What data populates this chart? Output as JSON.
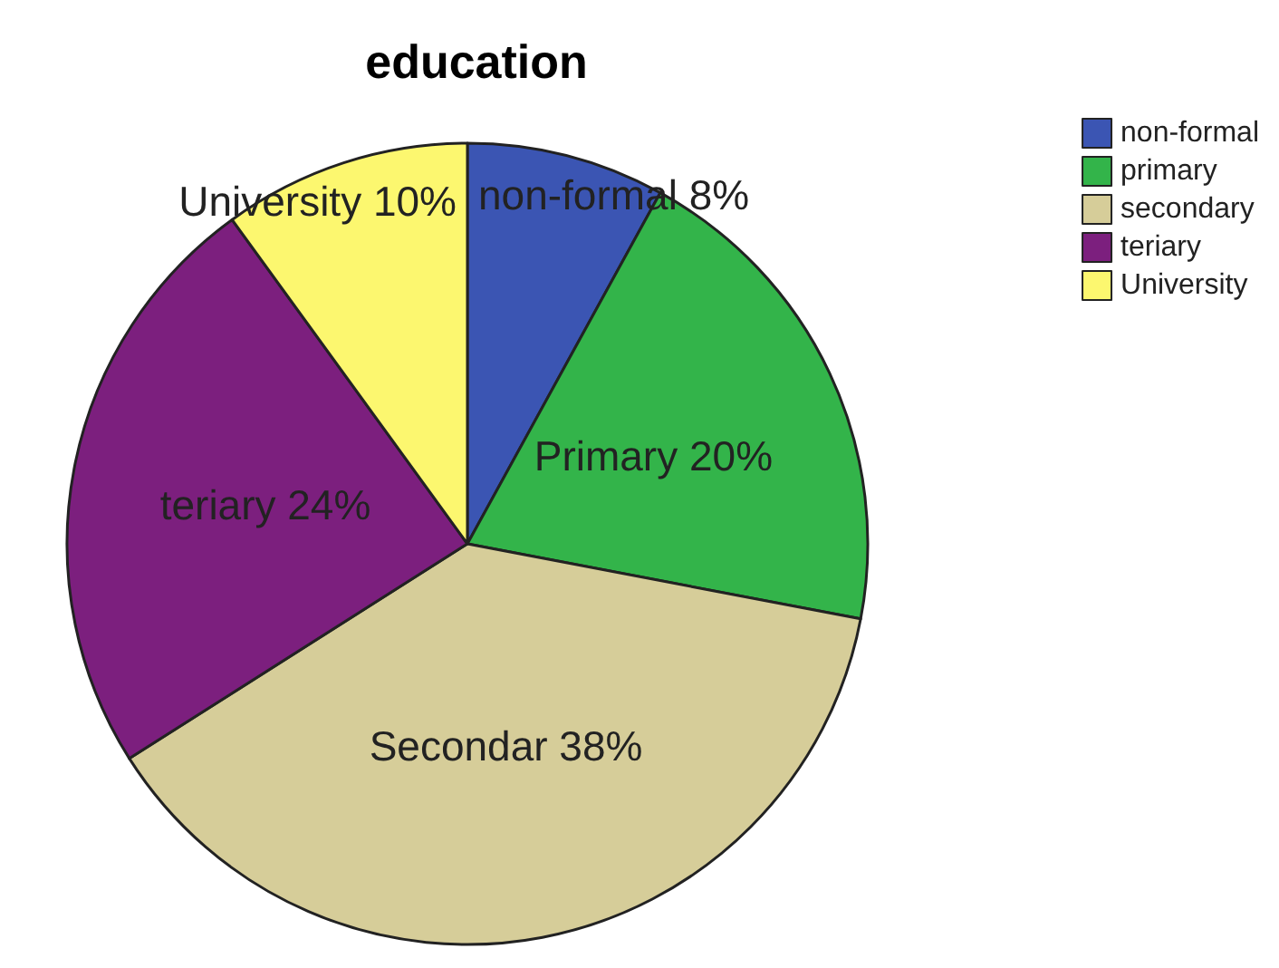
{
  "chart_data": {
    "type": "pie",
    "title": "education",
    "categories": [
      "non-formal",
      "primary",
      "secondary",
      "teriary",
      "University"
    ],
    "values": [
      8,
      20,
      38,
      24,
      10
    ],
    "colors": [
      "#3b55b3",
      "#33b44a",
      "#d6cd99",
      "#7c1f7e",
      "#fcf76f"
    ],
    "value_labels": [
      "non-formal 8%",
      "Primary 20%",
      "Secondar 38%",
      "teriary 24%",
      "University 10%"
    ],
    "legend": "top right"
  }
}
